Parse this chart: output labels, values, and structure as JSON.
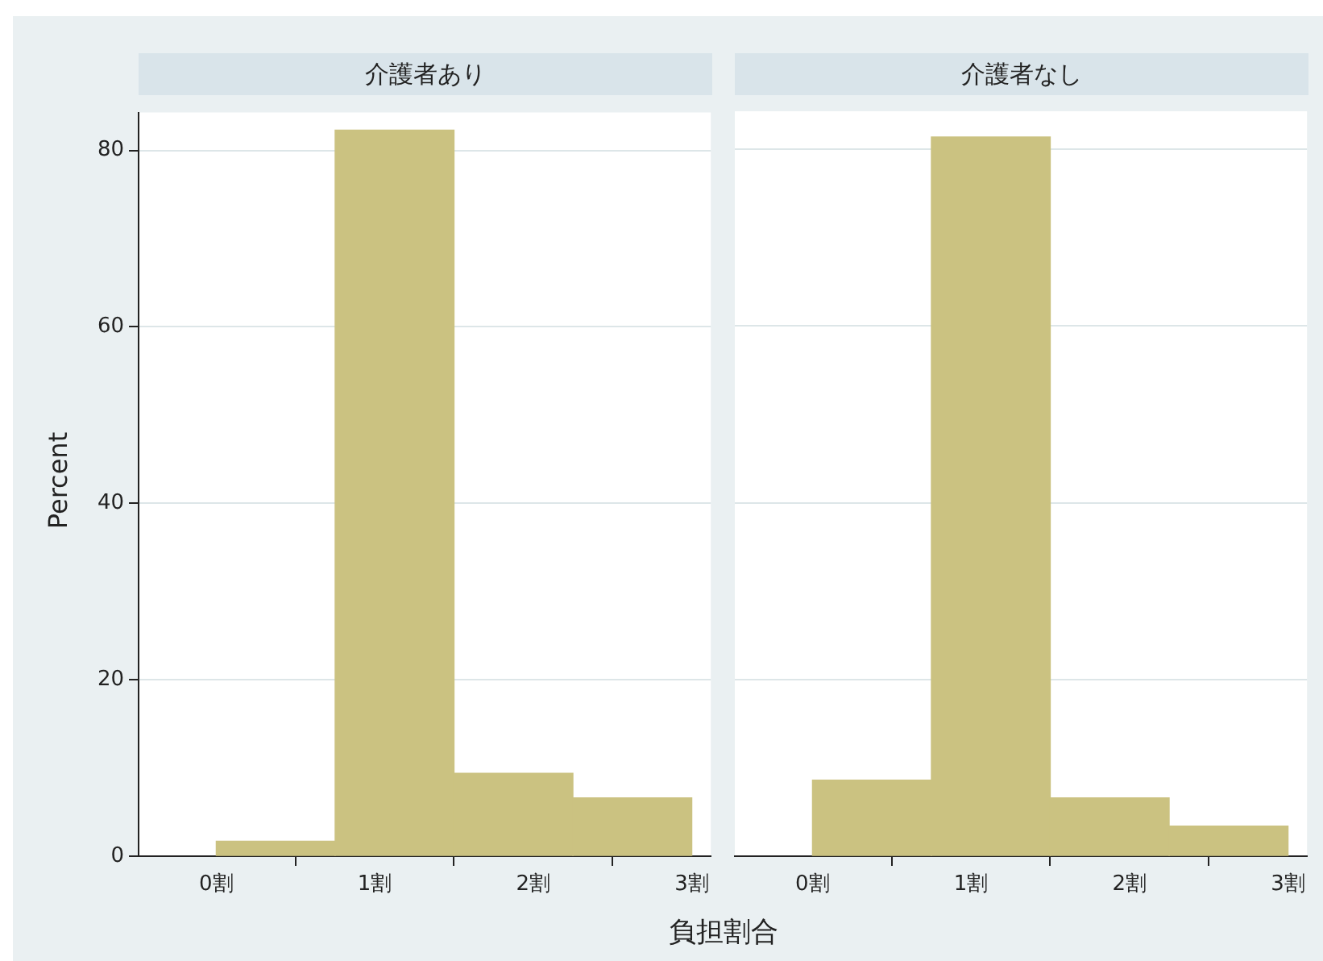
{
  "chart_data": [
    {
      "type": "histogram",
      "title": "介護者あり",
      "ylabel": "Percent",
      "xlabel": "負担割合",
      "bins": [
        0,
        0.75,
        1.5,
        2.25,
        3
      ],
      "values": [
        1.7,
        82.3,
        9.4,
        6.6
      ],
      "color": "#cbc281",
      "xlim": [
        -0.49,
        3.12
      ],
      "xticks": [
        {
          "value": 0,
          "label": "0割"
        },
        {
          "value": 1,
          "label": "1割"
        },
        {
          "value": 2,
          "label": "2割"
        },
        {
          "value": 3,
          "label": "3割"
        }
      ],
      "ylim": [
        0,
        84.3
      ],
      "yticks": [
        0,
        20,
        40,
        60,
        80
      ],
      "grid": "y"
    },
    {
      "type": "histogram",
      "title": "介護者なし",
      "bins": [
        0,
        0.75,
        1.5,
        2.25,
        3
      ],
      "values": [
        8.6,
        81.4,
        6.6,
        3.4
      ],
      "color": "#cbc281",
      "xlim": [
        -0.49,
        3.12
      ],
      "xticks": [
        {
          "value": 0,
          "label": "0割"
        },
        {
          "value": 1,
          "label": "1割"
        },
        {
          "value": 2,
          "label": "2割"
        },
        {
          "value": 3,
          "label": "3割"
        }
      ],
      "ylim": [
        0,
        84.3
      ],
      "yticks": [
        0,
        20,
        40,
        60,
        80
      ],
      "grid": "y",
      "tick_labels": "x"
    }
  ]
}
